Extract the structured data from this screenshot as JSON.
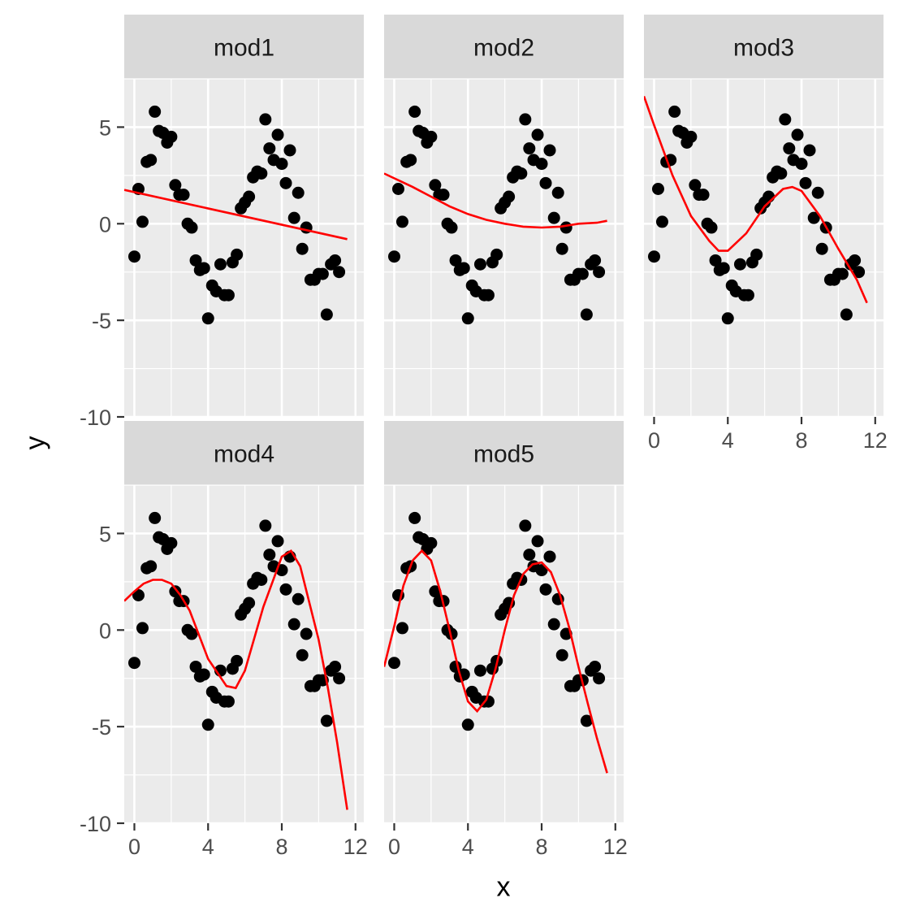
{
  "chart_data": {
    "type": "scatter",
    "xlabel": "x",
    "ylabel": "y",
    "xlim": [
      -0.55,
      12.45
    ],
    "ylim": [
      -10,
      7.5
    ],
    "xticks": [
      0,
      4,
      8,
      12
    ],
    "yticks": [
      5,
      0,
      -5,
      -10
    ],
    "xtick_labels": [
      "0",
      "4",
      "8",
      "12"
    ],
    "ytick_labels": [
      "5",
      "0",
      "-5",
      "-10"
    ],
    "grid": true,
    "point_color": "#000000",
    "line_color": "#ff0000",
    "panel_background": "#ebebeb",
    "strip_background": "#d9d9d9",
    "points": {
      "x": [
        0.0,
        0.22,
        0.44,
        0.67,
        0.89,
        1.11,
        1.33,
        1.56,
        1.78,
        2.0,
        2.22,
        2.44,
        2.67,
        2.89,
        3.11,
        3.33,
        3.56,
        3.78,
        4.0,
        4.22,
        4.44,
        4.67,
        4.89,
        5.11,
        5.33,
        5.56,
        5.78,
        6.0,
        6.22,
        6.44,
        6.67,
        6.89,
        7.11,
        7.33,
        7.56,
        7.78,
        8.0,
        8.22,
        8.44,
        8.67,
        8.89,
        9.11,
        9.33,
        9.56,
        9.78,
        10.0,
        10.22,
        10.44,
        10.67,
        10.89,
        11.11
      ],
      "y": [
        -1.7,
        1.8,
        0.1,
        3.2,
        3.3,
        5.8,
        4.8,
        4.7,
        4.2,
        4.5,
        2.0,
        1.5,
        1.5,
        0.0,
        -0.2,
        -1.9,
        -2.4,
        -2.3,
        -4.9,
        -3.2,
        -3.5,
        -2.1,
        -3.7,
        -3.7,
        -2.0,
        -1.6,
        0.8,
        1.1,
        1.4,
        2.4,
        2.7,
        2.6,
        5.4,
        3.9,
        3.3,
        4.6,
        3.1,
        2.1,
        3.8,
        0.3,
        1.6,
        -1.3,
        -0.2,
        -2.9,
        -2.9,
        -2.6,
        -2.6,
        -4.7,
        -2.1,
        -1.9,
        -2.5
      ]
    },
    "panels": [
      {
        "label": "mod1",
        "fit": {
          "x": [
            -0.55,
            11.55
          ],
          "y": [
            1.75,
            -0.8
          ]
        }
      },
      {
        "label": "mod2",
        "fit": {
          "x": [
            -0.55,
            1.0,
            2.0,
            3.0,
            4.0,
            5.0,
            6.0,
            7.0,
            8.0,
            9.0,
            10.0,
            11.0,
            11.55
          ],
          "y": [
            2.6,
            1.9,
            1.4,
            0.9,
            0.5,
            0.2,
            0.0,
            -0.15,
            -0.2,
            -0.15,
            0.0,
            0.05,
            0.15
          ]
        }
      },
      {
        "label": "mod3",
        "fit": {
          "x": [
            -0.55,
            0.0,
            1.0,
            2.0,
            3.0,
            3.5,
            4.0,
            5.0,
            6.0,
            7.0,
            7.5,
            8.0,
            9.0,
            10.0,
            11.0,
            11.55
          ],
          "y": [
            6.6,
            5.1,
            2.5,
            0.4,
            -0.9,
            -1.4,
            -1.4,
            -0.5,
            0.9,
            1.8,
            1.9,
            1.7,
            0.4,
            -1.3,
            -2.9,
            -4.1
          ]
        }
      },
      {
        "label": "mod4",
        "fit": {
          "x": [
            -0.55,
            0.0,
            0.5,
            1.0,
            1.5,
            2.0,
            2.5,
            3.0,
            4.0,
            5.0,
            5.5,
            6.0,
            7.0,
            8.0,
            8.5,
            9.0,
            10.0,
            10.5,
            11.0,
            11.55
          ],
          "y": [
            1.5,
            2.0,
            2.4,
            2.6,
            2.6,
            2.4,
            1.8,
            1.0,
            -1.5,
            -2.9,
            -3.0,
            -2.1,
            1.2,
            3.8,
            4.1,
            3.3,
            -0.5,
            -3.0,
            -5.8,
            -9.3
          ]
        }
      },
      {
        "label": "mod5",
        "fit": {
          "x": [
            -0.55,
            0.0,
            0.5,
            1.0,
            1.5,
            2.0,
            2.5,
            3.0,
            3.5,
            4.0,
            4.5,
            5.0,
            5.5,
            6.0,
            6.5,
            7.0,
            7.5,
            8.0,
            8.5,
            9.0,
            9.5,
            10.0,
            10.5,
            11.0,
            11.55
          ],
          "y": [
            -1.9,
            0.2,
            2.3,
            3.6,
            4.1,
            3.6,
            2.0,
            0.0,
            -2.1,
            -3.7,
            -4.2,
            -3.6,
            -2.0,
            0.0,
            1.8,
            2.9,
            3.4,
            3.5,
            3.0,
            1.8,
            0.1,
            -1.9,
            -3.8,
            -5.6,
            -7.4
          ]
        }
      }
    ]
  }
}
